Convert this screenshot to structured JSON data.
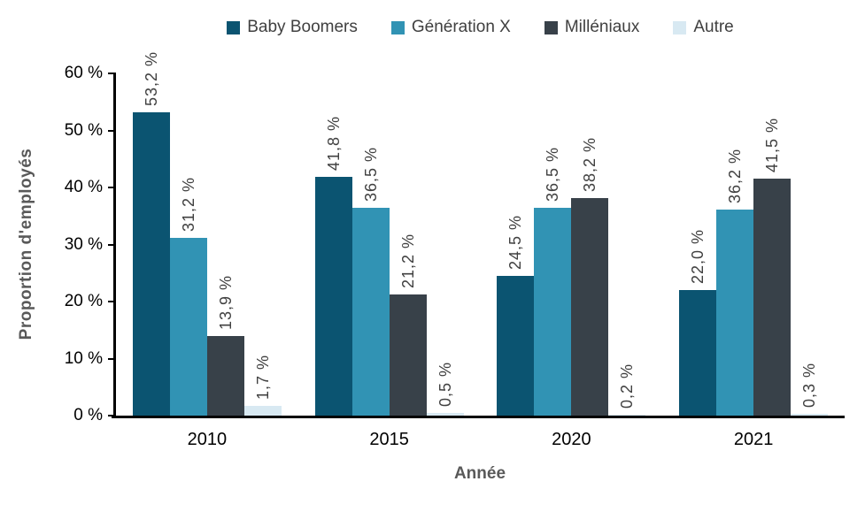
{
  "chart_data": {
    "type": "bar",
    "title": "",
    "xlabel": "Année",
    "ylabel": "Proportion d'employés",
    "categories": [
      "2010",
      "2015",
      "2020",
      "2021"
    ],
    "series": [
      {
        "name": "Baby Boomers",
        "color": "#0B5471",
        "values": [
          53.2,
          41.8,
          24.5,
          22.0
        ],
        "labels": [
          "53,2 %",
          "41,8 %",
          "24,5 %",
          "22,0 %"
        ]
      },
      {
        "name": "Génération X",
        "color": "#3193B4",
        "values": [
          31.2,
          36.5,
          36.5,
          36.2
        ],
        "labels": [
          "31,2 %",
          "36,5 %",
          "36,5 %",
          "36,2 %"
        ]
      },
      {
        "name": "Milléniaux",
        "color": "#384149",
        "values": [
          13.9,
          21.2,
          38.2,
          41.5
        ],
        "labels": [
          "13,9 %",
          "21,2 %",
          "38,2 %",
          "41,5 %"
        ]
      },
      {
        "name": "Autre",
        "color": "#D8E9F2",
        "values": [
          1.7,
          0.5,
          0.2,
          0.3
        ],
        "labels": [
          "1,7 %",
          "0,5 %",
          "0,2 %",
          "0,3 %"
        ]
      }
    ],
    "y_axis": {
      "min": 0,
      "max": 60,
      "step": 10,
      "tick_labels": [
        "0 %",
        "10 %",
        "20 %",
        "30 %",
        "40 %",
        "50 %",
        "60 %"
      ]
    },
    "legend_position": "top",
    "grid": false,
    "colors": {
      "value_label_text": "#404040",
      "axis_title_text": "#595959",
      "tick_label_text": "#000000",
      "axis_line": "#000000",
      "background": "#FFFFFF"
    }
  }
}
